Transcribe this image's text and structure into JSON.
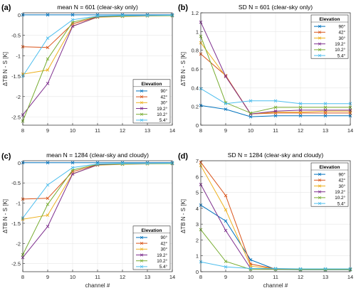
{
  "figure": {
    "legend_title": "Elevation",
    "series_names": [
      "90°",
      "42°",
      "30°",
      "19.2°",
      "10.2°",
      "5.4°"
    ],
    "series_colors": [
      "#0072BD",
      "#D95319",
      "#EDB120",
      "#7E2F8E",
      "#77AC30",
      "#4DBEEE"
    ]
  },
  "chart_data": [
    {
      "type": "line",
      "panel_label": "(a)",
      "title": "mean N = 601 (clear-sky only)",
      "xlabel": "",
      "ylabel": "ΔTB  N - S [K]",
      "x": [
        8,
        9,
        10,
        11,
        12,
        13,
        14
      ],
      "xlim": [
        8,
        14
      ],
      "ylim": [
        -2.7,
        0.05
      ],
      "yticks": [
        0,
        -0.5,
        -1,
        -1.5,
        -2,
        -2.5
      ],
      "ytick_labels": [
        "0",
        "-0.5",
        "-1",
        "-1.5",
        "-2",
        "-2.5"
      ],
      "xticks": [
        8,
        9,
        10,
        11,
        12,
        13,
        14
      ],
      "grid": true,
      "legend_position": "lower-right",
      "series": [
        {
          "name": "90°",
          "values": [
            0,
            0,
            0,
            0,
            0,
            0,
            0
          ]
        },
        {
          "name": "42°",
          "values": [
            -0.78,
            -0.8,
            -0.22,
            -0.05,
            -0.03,
            -0.02,
            -0.02
          ]
        },
        {
          "name": "30°",
          "values": [
            -1.45,
            -1.35,
            -0.27,
            -0.06,
            -0.04,
            -0.03,
            -0.02
          ]
        },
        {
          "name": "19.2°",
          "values": [
            -2.45,
            -1.68,
            -0.28,
            -0.05,
            -0.03,
            -0.02,
            -0.02
          ]
        },
        {
          "name": "10.2°",
          "values": [
            -2.6,
            -1.08,
            -0.18,
            -0.04,
            -0.03,
            -0.02,
            -0.02
          ]
        },
        {
          "name": "5.4°",
          "values": [
            -1.5,
            -0.57,
            -0.12,
            -0.03,
            -0.02,
            -0.02,
            -0.01
          ]
        }
      ]
    },
    {
      "type": "line",
      "panel_label": "(b)",
      "title": "SD N = 601 (clear-sky only)",
      "xlabel": "",
      "ylabel": "ΔTB  N - S [K]",
      "x": [
        8,
        9,
        10,
        11,
        12,
        13,
        14
      ],
      "xlim": [
        8,
        14
      ],
      "ylim": [
        0,
        1.2
      ],
      "yticks": [
        0,
        0.2,
        0.4,
        0.6,
        0.8,
        1,
        1.2
      ],
      "ytick_labels": [
        "0",
        "0.2",
        "0.4",
        "0.6",
        "0.8",
        "1",
        "1.2"
      ],
      "xticks": [
        8,
        9,
        10,
        11,
        12,
        13,
        14
      ],
      "grid": true,
      "legend_position": "top-right",
      "series": [
        {
          "name": "90°",
          "values": [
            0.21,
            0.17,
            0.09,
            0.1,
            0.1,
            0.1,
            0.1
          ]
        },
        {
          "name": "42°",
          "values": [
            0.76,
            0.53,
            0.12,
            0.13,
            0.13,
            0.13,
            0.13
          ]
        },
        {
          "name": "30°",
          "values": [
            0.88,
            0.52,
            0.12,
            0.14,
            0.14,
            0.15,
            0.15
          ]
        },
        {
          "name": "19.2°",
          "values": [
            1.1,
            0.52,
            0.12,
            0.15,
            0.16,
            0.16,
            0.16
          ]
        },
        {
          "name": "10.2°",
          "values": [
            0.95,
            0.24,
            0.13,
            0.19,
            0.19,
            0.19,
            0.19
          ]
        },
        {
          "name": "5.4°",
          "values": [
            0.39,
            0.23,
            0.26,
            0.26,
            0.23,
            0.23,
            0.23
          ]
        }
      ]
    },
    {
      "type": "line",
      "panel_label": "(c)",
      "title": "mean N = 1284 (clear-sky and cloudy)",
      "xlabel": "channel #",
      "ylabel": "ΔTB  N - S [K]",
      "x": [
        8,
        9,
        10,
        11,
        12,
        13,
        14
      ],
      "xlim": [
        8,
        14
      ],
      "ylim": [
        -2.7,
        0.05
      ],
      "yticks": [
        0,
        -0.5,
        -1,
        -1.5,
        -2,
        -2.5
      ],
      "ytick_labels": [
        "0",
        "-0.5",
        "-1",
        "-1.5",
        "-2",
        "-2.5"
      ],
      "xticks": [
        8,
        9,
        10,
        11,
        12,
        13,
        14
      ],
      "xtick_labels": [
        "8",
        "9",
        "10",
        "11",
        "12",
        "13",
        "14"
      ],
      "grid": true,
      "legend_position": "lower-right",
      "series": [
        {
          "name": "90°",
          "values": [
            0,
            0,
            0,
            0,
            0,
            0,
            0
          ]
        },
        {
          "name": "42°",
          "values": [
            -0.9,
            -0.88,
            -0.22,
            -0.05,
            -0.03,
            -0.02,
            -0.02
          ]
        },
        {
          "name": "30°",
          "values": [
            -1.4,
            -1.3,
            -0.27,
            -0.06,
            -0.04,
            -0.03,
            -0.02
          ]
        },
        {
          "name": "19.2°",
          "values": [
            -2.35,
            -1.58,
            -0.28,
            -0.05,
            -0.03,
            -0.02,
            -0.02
          ]
        },
        {
          "name": "10.2°",
          "values": [
            -2.28,
            -1.03,
            -0.18,
            -0.04,
            -0.03,
            -0.02,
            -0.02
          ]
        },
        {
          "name": "5.4°",
          "values": [
            -1.37,
            -0.55,
            -0.12,
            -0.03,
            -0.02,
            -0.02,
            -0.01
          ]
        }
      ]
    },
    {
      "type": "line",
      "panel_label": "(d)",
      "title": "SD N = 1284 (clear-sky and cloudy)",
      "xlabel": "channel #",
      "ylabel": "ΔTB  N - S [K]",
      "x": [
        8,
        9,
        10,
        11,
        12,
        13,
        14
      ],
      "xlim": [
        8,
        14
      ],
      "ylim": [
        0,
        7
      ],
      "yticks": [
        0,
        1,
        2,
        3,
        4,
        5,
        6,
        7
      ],
      "ytick_labels": [
        "0",
        "1",
        "2",
        "3",
        "4",
        "5",
        "6",
        "7"
      ],
      "xticks": [
        8,
        9,
        10,
        11,
        12,
        13,
        14
      ],
      "xtick_labels": [
        "8",
        "9",
        "10",
        "11",
        "12",
        "13",
        "14"
      ],
      "grid": true,
      "legend_position": "top-right",
      "series": [
        {
          "name": "90°",
          "values": [
            4.2,
            3.2,
            0.75,
            0.15,
            0.12,
            0.12,
            0.12
          ]
        },
        {
          "name": "42°",
          "values": [
            6.9,
            4.8,
            0.48,
            0.18,
            0.15,
            0.15,
            0.15
          ]
        },
        {
          "name": "30°",
          "values": [
            6.7,
            3.9,
            0.35,
            0.18,
            0.15,
            0.15,
            0.15
          ]
        },
        {
          "name": "19.2°",
          "values": [
            5.5,
            2.6,
            0.2,
            0.17,
            0.15,
            0.15,
            0.15
          ]
        },
        {
          "name": "10.2°",
          "values": [
            2.65,
            0.65,
            0.15,
            0.15,
            0.14,
            0.14,
            0.14
          ]
        },
        {
          "name": "5.4°",
          "values": [
            0.62,
            0.3,
            0.2,
            0.2,
            0.18,
            0.18,
            0.18
          ]
        }
      ]
    }
  ]
}
